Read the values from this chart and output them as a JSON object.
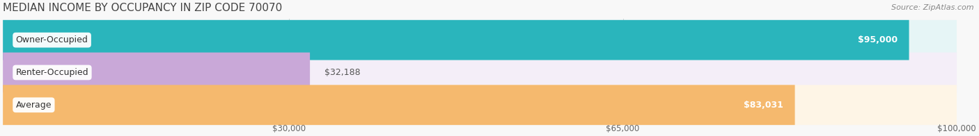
{
  "title": "MEDIAN INCOME BY OCCUPANCY IN ZIP CODE 70070",
  "source": "Source: ZipAtlas.com",
  "categories": [
    "Owner-Occupied",
    "Renter-Occupied",
    "Average"
  ],
  "values": [
    95000,
    32188,
    83031
  ],
  "labels": [
    "$95,000",
    "$32,188",
    "$83,031"
  ],
  "bar_colors": [
    "#2ab5bc",
    "#c9a8d8",
    "#f5b96e"
  ],
  "bar_bg_colors": [
    "#e6f5f6",
    "#f4eef8",
    "#fef5e6"
  ],
  "x_ticks": [
    30000,
    65000,
    100000
  ],
  "x_tick_labels": [
    "$30,000",
    "$65,000",
    "$100,000"
  ],
  "xlim": [
    0,
    105000
  ],
  "data_max": 100000,
  "title_fontsize": 11,
  "source_fontsize": 8,
  "label_fontsize": 9,
  "bar_label_fontsize": 9,
  "tick_fontsize": 8.5,
  "background_color": "#f8f8f8"
}
